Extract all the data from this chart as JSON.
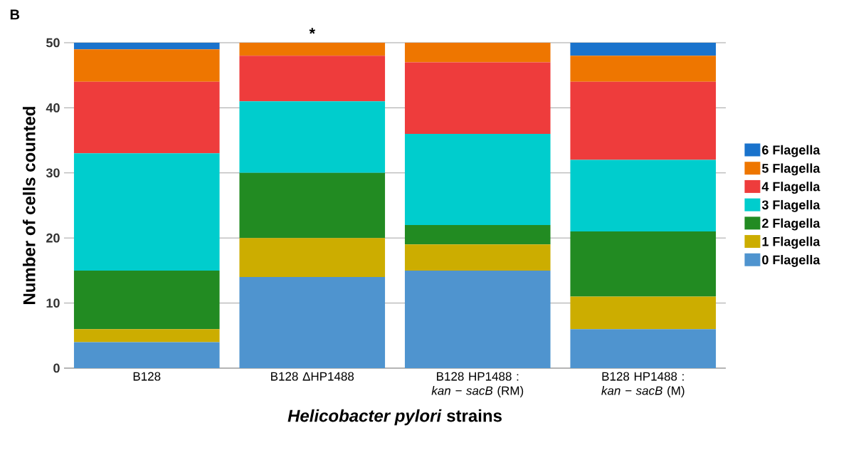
{
  "chart_data": {
    "type": "bar",
    "stacked": true,
    "xlabel": "*Helicobacter pylori* strains",
    "ylabel": "Number of cells counted",
    "categories": [
      "B128",
      "B128 ΔHP1488",
      "B128 HP1488 : *kan − sacB* (RM)",
      "B128 HP1488 : *kan − sacB* (M)"
    ],
    "series": [
      {
        "name": "0 Flagella",
        "color": "#4f94cf",
        "values": [
          4,
          14,
          15,
          6
        ]
      },
      {
        "name": "1 Flagella",
        "color": "#ccad00",
        "values": [
          2,
          6,
          4,
          5
        ]
      },
      {
        "name": "2 Flagella",
        "color": "#228b22",
        "values": [
          9,
          10,
          3,
          10
        ]
      },
      {
        "name": "3 Flagella",
        "color": "#00cdcd",
        "values": [
          18,
          11,
          14,
          11
        ]
      },
      {
        "name": "4 Flagella",
        "color": "#ee3c3c",
        "values": [
          11,
          7,
          11,
          12
        ]
      },
      {
        "name": "5 Flagella",
        "color": "#ee7600",
        "values": [
          5,
          2,
          3,
          4
        ]
      },
      {
        "name": "6 Flagella",
        "color": "#1a73cc",
        "values": [
          1,
          0,
          0,
          2
        ]
      }
    ],
    "ylim": [
      0,
      50
    ],
    "yticks": [
      0,
      10,
      20,
      30,
      40,
      50
    ],
    "grid": "y",
    "legend": "right",
    "annotations": [
      "B",
      {
        "text": "*",
        "x": "B128 ΔHP1488",
        "y": 50
      }
    ]
  }
}
